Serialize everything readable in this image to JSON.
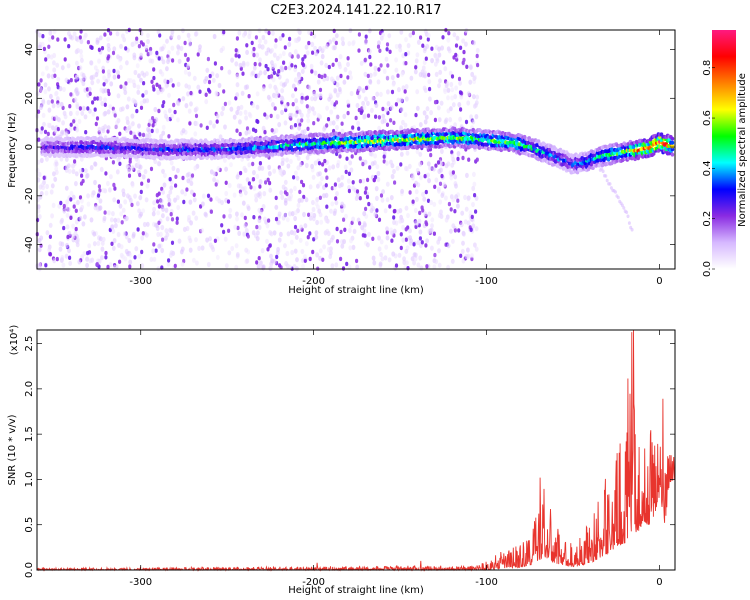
{
  "title": "C2E3.2024.141.22.10.R17",
  "chart_data": [
    {
      "type": "heatmap",
      "name": "spectrogram",
      "xlabel": "Height of straight line (km)",
      "ylabel": "Frequency (Hz)",
      "xlim": [
        -360,
        9
      ],
      "ylim": [
        -50,
        48
      ],
      "xticks": [
        -300,
        -200,
        -100,
        0
      ],
      "yticks": [
        -40,
        -20,
        0,
        20,
        40
      ],
      "colorbar": {
        "label": "Normalized spectral amplitude",
        "range": [
          0,
          0.95
        ],
        "ticks": [
          "0.0",
          "0.2",
          "0.4",
          "0.6",
          "0.8"
        ],
        "tick_values": [
          0.0,
          0.2,
          0.4,
          0.6,
          0.8
        ],
        "colormap": [
          "#ffffff",
          "#d6b8ff",
          "#8a2be2",
          "#0000ff",
          "#00ffff",
          "#00ff00",
          "#ffff00",
          "#ff8000",
          "#ff0000",
          "#ff1a80"
        ]
      },
      "ridge": {
        "x": [
          -355,
          -320,
          -290,
          -260,
          -230,
          -210,
          -180,
          -150,
          -120,
          -100,
          -85,
          -75,
          -60,
          -50,
          -42,
          -35,
          -28,
          -20,
          -12,
          -5,
          0,
          9
        ],
        "freq_hz": [
          0,
          0,
          -1,
          -1,
          0,
          1,
          2,
          3,
          4,
          3,
          2,
          0,
          -4,
          -7,
          -6,
          -4,
          -3,
          -2,
          -1,
          0,
          2,
          0
        ],
        "amplitude": [
          0.25,
          0.3,
          0.3,
          0.32,
          0.38,
          0.45,
          0.55,
          0.6,
          0.55,
          0.5,
          0.55,
          0.45,
          0.35,
          0.3,
          0.4,
          0.45,
          0.5,
          0.55,
          0.7,
          0.75,
          0.85,
          0.6
        ]
      },
      "background_noise_x_range": [
        -360,
        -105
      ],
      "secondary_trace": {
        "x": [
          -35,
          -20,
          -15
        ],
        "freq_hz": [
          -8,
          -25,
          -36
        ]
      }
    },
    {
      "type": "line",
      "name": "snr",
      "xlabel": "Height of straight line (km)",
      "ylabel": "SNR (10 * v/v)",
      "y_multiplier": "(x10⁴)",
      "xlim": [
        -360,
        9
      ],
      "ylim": [
        0,
        2.65
      ],
      "xticks": [
        -300,
        -200,
        -100,
        0
      ],
      "yticks": [
        0.0,
        0.5,
        1.0,
        1.5,
        2.0,
        2.5
      ],
      "color": "#e8342d",
      "envelope": {
        "x": [
          -360,
          -200,
          -110,
          -100,
          -90,
          -80,
          -75,
          -70,
          -67,
          -62,
          -55,
          -50,
          -45,
          -40,
          -35,
          -30,
          -25,
          -20,
          -16,
          -13,
          -10,
          -6,
          -3,
          0,
          3,
          6,
          9
        ],
        "max": [
          0.02,
          0.04,
          0.05,
          0.1,
          0.22,
          0.3,
          0.45,
          0.75,
          1.02,
          0.6,
          0.35,
          0.3,
          0.4,
          0.6,
          0.8,
          1.1,
          1.3,
          1.7,
          2.65,
          1.5,
          1.2,
          1.6,
          1.9,
          1.5,
          1.45,
          1.6,
          1.4
        ],
        "min": [
          0.0,
          0.0,
          0.0,
          0.0,
          0.02,
          0.03,
          0.05,
          0.1,
          0.15,
          0.08,
          0.05,
          0.03,
          0.05,
          0.08,
          0.12,
          0.18,
          0.25,
          0.3,
          0.4,
          0.4,
          0.5,
          0.5,
          0.6,
          0.8,
          0.5,
          0.9,
          1.0
        ]
      },
      "peaks": [
        {
          "x": -198,
          "y": 0.08
        },
        {
          "x": -138,
          "y": 0.1
        },
        {
          "x": -69,
          "y": 1.02
        },
        {
          "x": -15,
          "y": 2.65
        },
        {
          "x": 2,
          "y": 1.89
        }
      ]
    }
  ]
}
